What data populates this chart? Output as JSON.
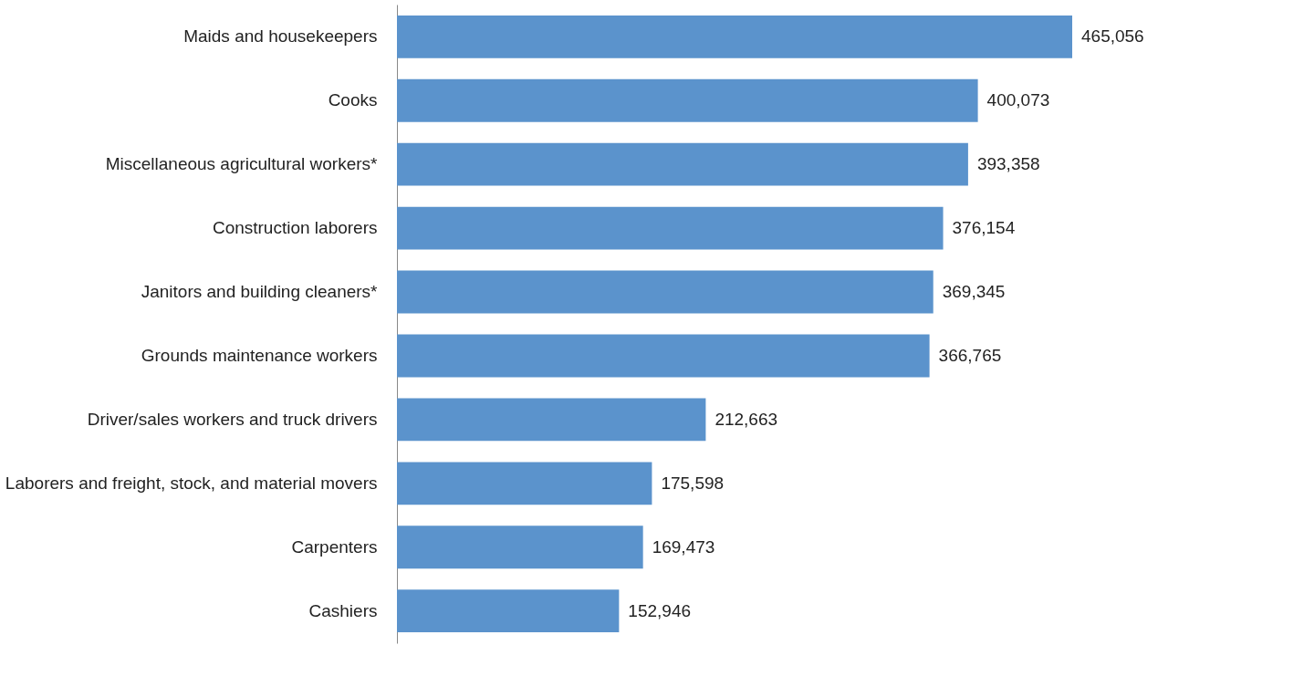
{
  "chart_data": {
    "type": "bar",
    "orientation": "horizontal",
    "categories": [
      "Maids and housekeepers",
      "Cooks",
      "Miscellaneous agricultural workers*",
      "Construction laborers",
      "Janitors and building cleaners*",
      "Grounds maintenance workers",
      "Driver/sales workers and truck drivers",
      "Laborers and freight, stock, and material movers",
      "Carpenters",
      "Cashiers"
    ],
    "values": [
      465056,
      400073,
      393358,
      376154,
      369345,
      366765,
      212663,
      175598,
      169473,
      152946
    ],
    "value_labels": [
      "465,056",
      "400,073",
      "393,358",
      "376,154",
      "369,345",
      "366,765",
      "212,663",
      "175,598",
      "169,473",
      "152,946"
    ],
    "color": "#5b93cc"
  }
}
